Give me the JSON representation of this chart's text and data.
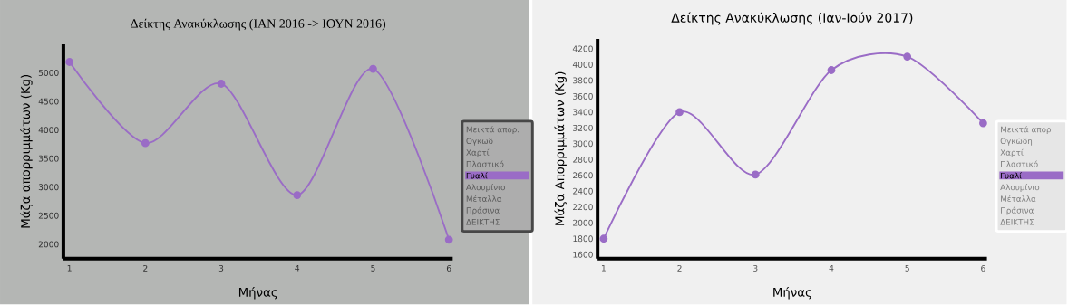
{
  "chart_data": [
    {
      "type": "line",
      "title": "Δείκτης Ανακύκλωσης (ΙΑΝ 2016 -> ΙΟΥΝ 2016)",
      "xlabel": "Μήνας",
      "ylabel": "Μάζα απορριμμάτων (Kg)",
      "x": [
        1,
        2,
        3,
        4,
        5,
        6
      ],
      "xlim": [
        0.92,
        6.05
      ],
      "xticks": [
        1,
        2,
        3,
        4,
        5,
        6
      ],
      "ylim": [
        1750,
        5500
      ],
      "yticks": [
        2000,
        2500,
        3000,
        3500,
        4000,
        4500,
        5000
      ],
      "legend": "right",
      "marker": "circle",
      "series": [
        {
          "name": "Μεικτά απορ.",
          "values": [
            null,
            null,
            null,
            null,
            null,
            null
          ]
        },
        {
          "name": "Ογκωδ",
          "values": [
            null,
            null,
            null,
            null,
            null,
            null
          ]
        },
        {
          "name": "Χαρτί",
          "values": [
            null,
            null,
            null,
            null,
            null,
            null
          ]
        },
        {
          "name": "Πλαστικό",
          "values": [
            null,
            null,
            null,
            null,
            null,
            null
          ]
        },
        {
          "name": "Γυαλί",
          "color": "#9a6cc6",
          "values": [
            5190,
            3770,
            4810,
            2860,
            5070,
            2080
          ]
        },
        {
          "name": "Αλουμίνιο",
          "values": [
            null,
            null,
            null,
            null,
            null,
            null
          ]
        },
        {
          "name": "Μέταλλα",
          "values": [
            null,
            null,
            null,
            null,
            null,
            null
          ]
        },
        {
          "name": "Πράσινα",
          "values": [
            null,
            null,
            null,
            null,
            null,
            null
          ]
        },
        {
          "name": "ΔΕΙΚΤΗΣ",
          "values": [
            null,
            null,
            null,
            null,
            null,
            null
          ]
        }
      ]
    },
    {
      "type": "line",
      "title": "Δείκτης Ανακύκλωσης (Ιαν-Ιούν 2017)",
      "xlabel": "Μήνας",
      "ylabel": "Μάζα Απορριμμάτων (Kg)",
      "x": [
        1,
        2,
        3,
        4,
        5,
        6
      ],
      "xlim": [
        0.92,
        6.05
      ],
      "xticks": [
        1,
        2,
        3,
        4,
        5,
        6
      ],
      "ylim": [
        1550,
        4325
      ],
      "yticks": [
        1600,
        1800,
        2000,
        2200,
        2400,
        2600,
        2800,
        3000,
        3200,
        3400,
        3600,
        3800,
        4000,
        4200
      ],
      "legend": "right",
      "marker": "circle",
      "series": [
        {
          "name": "Μεικτά απορ",
          "values": [
            null,
            null,
            null,
            null,
            null,
            null
          ]
        },
        {
          "name": "Ογκώδη",
          "values": [
            null,
            null,
            null,
            null,
            null,
            null
          ]
        },
        {
          "name": "Χαρτί",
          "values": [
            null,
            null,
            null,
            null,
            null,
            null
          ]
        },
        {
          "name": "Πλαστικό",
          "values": [
            null,
            null,
            null,
            null,
            null,
            null
          ]
        },
        {
          "name": "Γυαλί",
          "color": "#9a6cc6",
          "values": [
            1800,
            3400,
            2610,
            3930,
            4100,
            3260
          ]
        },
        {
          "name": "Αλουμίνιο",
          "values": [
            null,
            null,
            null,
            null,
            null,
            null
          ]
        },
        {
          "name": "Μέταλλα",
          "values": [
            null,
            null,
            null,
            null,
            null,
            null
          ]
        },
        {
          "name": "Πράσινα",
          "values": [
            null,
            null,
            null,
            null,
            null,
            null
          ]
        },
        {
          "name": "ΔΕΙΚΤΗΣ",
          "values": [
            null,
            null,
            null,
            null,
            null,
            null
          ]
        }
      ]
    }
  ]
}
